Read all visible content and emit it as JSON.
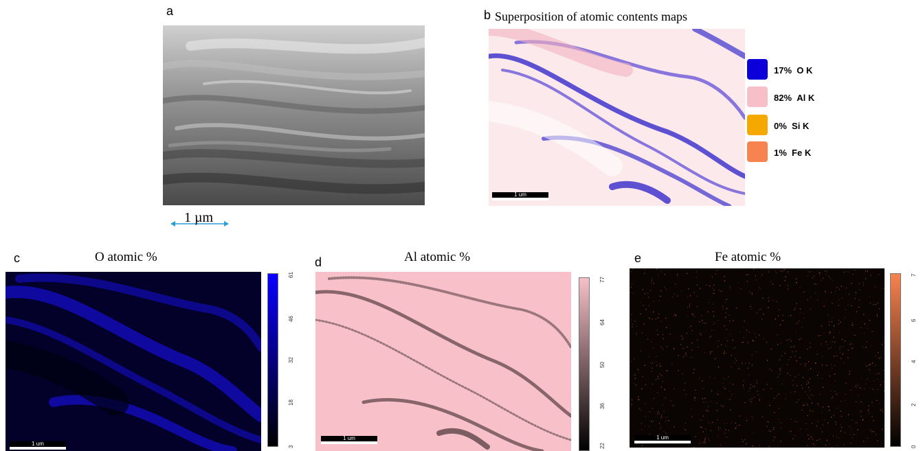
{
  "panel_a": {
    "letter": "a",
    "scale_label": "1 µm"
  },
  "panel_b": {
    "letter": "b",
    "title": "Superposition of atomic contents maps",
    "scale_label": "1 um",
    "legend": [
      {
        "percent": "17%",
        "element": "O K",
        "color": "#0b00d9"
      },
      {
        "percent": "82%",
        "element": "Al K",
        "color": "#f7c0c8"
      },
      {
        "percent": "0%",
        "element": "Si K",
        "color": "#f5a800"
      },
      {
        "percent": "1%",
        "element": "Fe K",
        "color": "#f68350"
      }
    ]
  },
  "panel_c": {
    "letter": "c",
    "title": "O  atomic %",
    "scale_label": "1 um",
    "colorbar_ticks": [
      "61",
      "46",
      "32",
      "18",
      "3"
    ],
    "colors": [
      "#0a00ff",
      "#000000"
    ]
  },
  "panel_d": {
    "letter": "d",
    "title": "Al  atomic %",
    "scale_label": "1 um",
    "colorbar_ticks": [
      "77",
      "64",
      "50",
      "36",
      "22"
    ],
    "colors": [
      "#f7c0c8",
      "#000000"
    ]
  },
  "panel_e": {
    "letter": "e",
    "title": "Fe atomic %",
    "scale_label": "1 um",
    "colorbar_ticks": [
      "7",
      "6",
      "4",
      "2",
      "0"
    ],
    "colors": [
      "#f68350",
      "#000000"
    ]
  }
}
